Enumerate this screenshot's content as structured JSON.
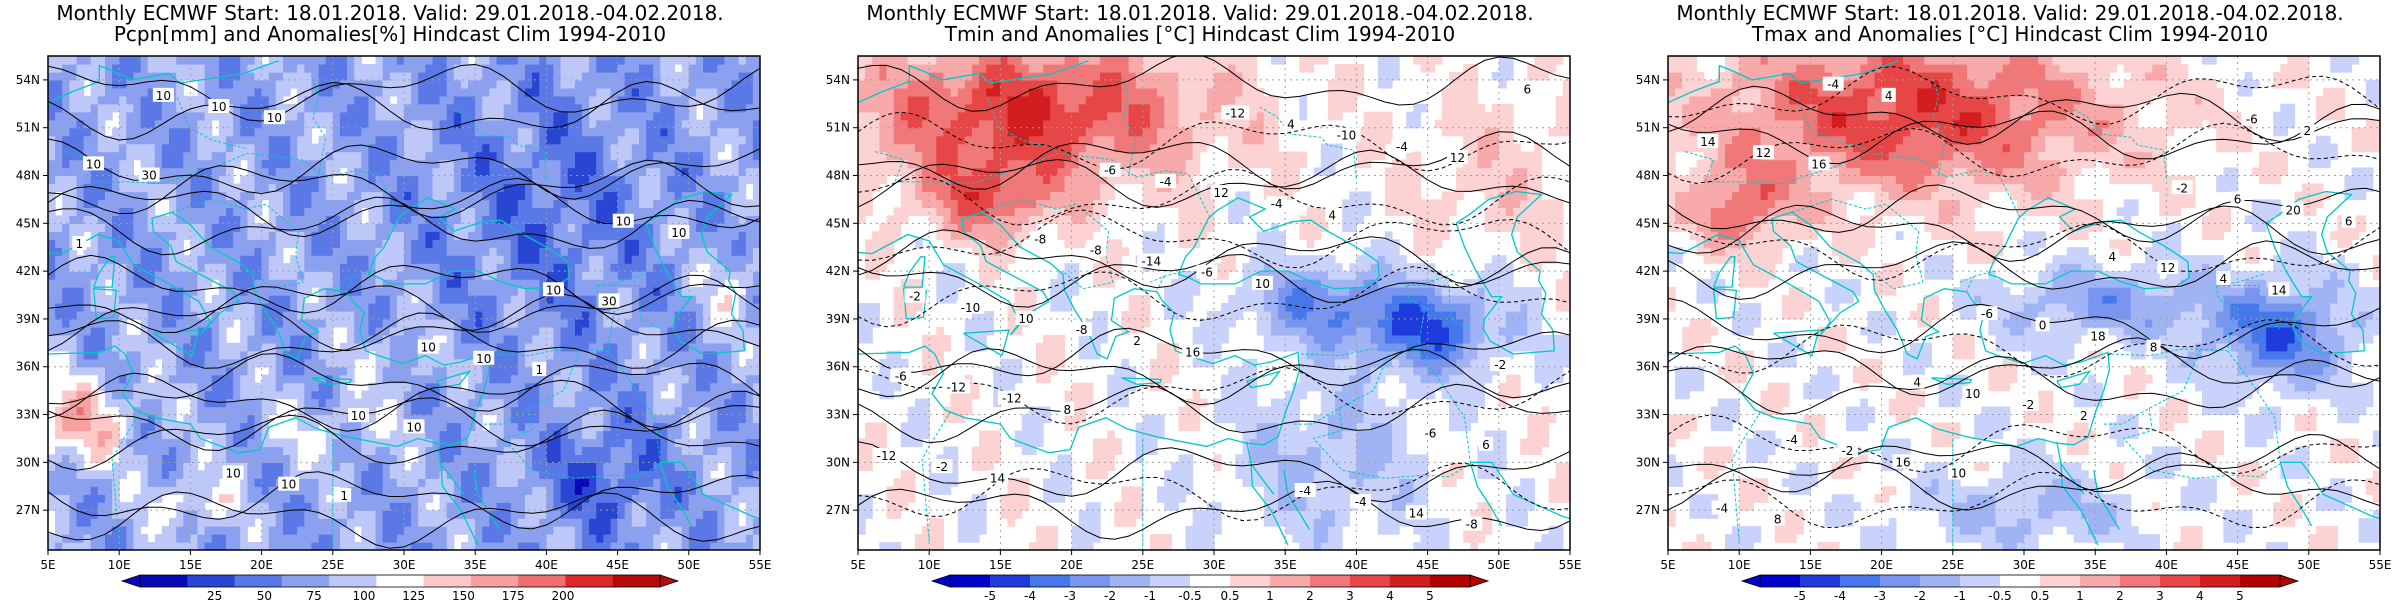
{
  "chart_data": [
    {
      "type": "heatmap",
      "title_line1": "Monthly ECMWF Start: 18.01.2018. Valid: 29.01.2018.-04.02.2018.",
      "title_line2": "Pcpn[mm] and Anomalies[%] Hindcast Clim 1994-2010",
      "x_ticks": [
        "5E",
        "10E",
        "15E",
        "20E",
        "25E",
        "30E",
        "35E",
        "40E",
        "45E",
        "50E",
        "55E"
      ],
      "y_ticks": [
        "27N",
        "30N",
        "33N",
        "36N",
        "39N",
        "42N",
        "45N",
        "48N",
        "51N",
        "54N"
      ],
      "colorbar": {
        "labels": [
          "25",
          "50",
          "75",
          "100",
          "125",
          "150",
          "175",
          "200"
        ],
        "colors": [
          "#0a0ab4",
          "#2846d2",
          "#5a78e6",
          "#8ca0f0",
          "#bec8f8",
          "#ffffff",
          "#fcc8c8",
          "#f8a0a0",
          "#f06e6e",
          "#dc2828",
          "#b40a0a"
        ],
        "scheme": "precip"
      },
      "contour_labels": [
        "10",
        "10",
        "10",
        "10",
        "10",
        "10",
        "10",
        "10",
        "10",
        "10",
        "10",
        "10",
        "30",
        "30",
        "1",
        "1",
        "1",
        "10"
      ]
    },
    {
      "type": "heatmap",
      "title_line1": "Monthly ECMWF Start: 18.01.2018. Valid: 29.01.2018.-04.02.2018.",
      "title_line2": "Tmin and Anomalies [°C] Hindcast Clim 1994-2010",
      "x_ticks": [
        "5E",
        "10E",
        "15E",
        "20E",
        "25E",
        "30E",
        "35E",
        "40E",
        "45E",
        "50E",
        "55E"
      ],
      "y_ticks": [
        "27N",
        "30N",
        "33N",
        "36N",
        "39N",
        "42N",
        "45N",
        "48N",
        "51N",
        "54N"
      ],
      "colorbar": {
        "labels": [
          "-5",
          "-4",
          "-3",
          "-2",
          "-1",
          "-0.5",
          "0.5",
          "1",
          "2",
          "3",
          "4",
          "5"
        ],
        "colors": [
          "#0000c8",
          "#1e3cdc",
          "#4678eb",
          "#7896f0",
          "#a0b4f5",
          "#c8d2fa",
          "#ffffff",
          "#fcd2d2",
          "#f8aaaa",
          "#f07878",
          "#e64646",
          "#d21e1e",
          "#b40000"
        ],
        "scheme": "tmin"
      },
      "contour_labels": [
        "-2",
        "-6",
        "-4",
        "-2",
        "-8",
        "-12",
        "-6",
        "-10",
        "-4",
        "-4",
        "-6",
        "-8",
        "4",
        "6",
        "10",
        "12",
        "14",
        "-12",
        "-14",
        "-10",
        "-12",
        "-8",
        "-4",
        "-8",
        "-12",
        "-6",
        "-4",
        "-2",
        "2",
        "4",
        "6",
        "8",
        "10",
        "12",
        "14",
        "16"
      ]
    },
    {
      "type": "heatmap",
      "title_line1": "Monthly ECMWF Start: 18.01.2018. Valid: 29.01.2018.-04.02.2018.",
      "title_line2": "Tmax and Anomalies [°C] Hindcast Clim 1994-2010",
      "x_ticks": [
        "5E",
        "10E",
        "15E",
        "20E",
        "25E",
        "30E",
        "35E",
        "40E",
        "45E",
        "50E",
        "55E"
      ],
      "y_ticks": [
        "27N",
        "30N",
        "33N",
        "36N",
        "39N",
        "42N",
        "45N",
        "48N",
        "51N",
        "54N"
      ],
      "colorbar": {
        "labels": [
          "-5",
          "-4",
          "-3",
          "-2",
          "-1",
          "-0.5",
          "0.5",
          "1",
          "2",
          "3",
          "4",
          "5"
        ],
        "colors": [
          "#0000c8",
          "#1e3cdc",
          "#4678eb",
          "#7896f0",
          "#a0b4f5",
          "#c8d2fa",
          "#ffffff",
          "#fcd2d2",
          "#f8aaaa",
          "#f07878",
          "#e64646",
          "#d21e1e",
          "#b40000"
        ],
        "scheme": "tmax"
      },
      "contour_labels": [
        "-6",
        "-4",
        "-6",
        "-2",
        "-4",
        "4",
        "4",
        "2",
        "-2",
        "0",
        "6",
        "8",
        "10",
        "12",
        "14",
        "16",
        "18",
        "20",
        "-4",
        "-2",
        "4",
        "12",
        "10",
        "8",
        "6",
        "4",
        "2",
        "14",
        "16"
      ]
    }
  ]
}
